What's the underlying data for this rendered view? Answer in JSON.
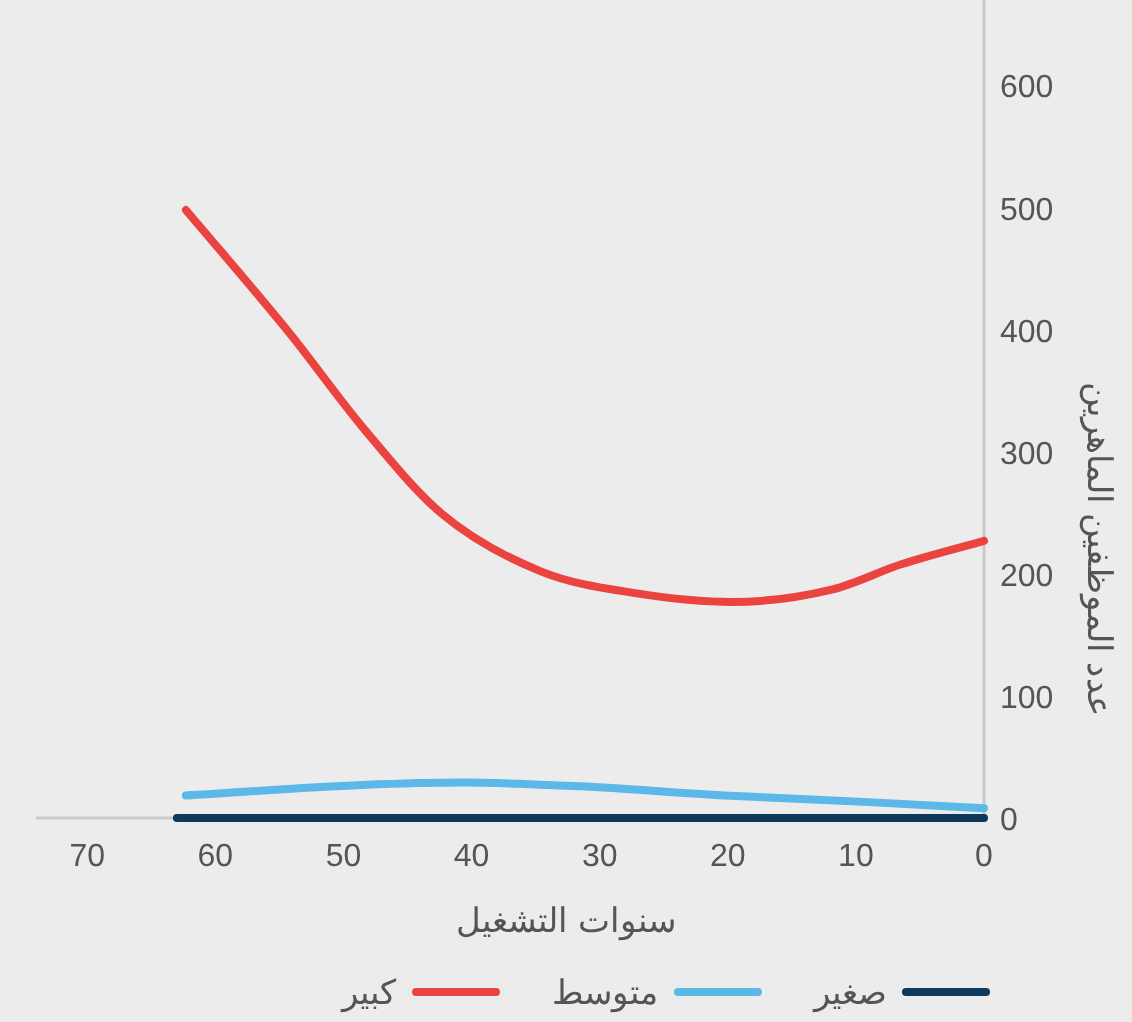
{
  "chart_data": {
    "type": "line",
    "xlabel": "سنوات التشغيل",
    "ylabel": "عدد الموظفين الماهرين",
    "xlim": [
      74,
      0
    ],
    "xticks": [
      70,
      60,
      50,
      40,
      30,
      20,
      10,
      0
    ],
    "ylim": [
      0,
      670
    ],
    "yticks": [
      0,
      100,
      200,
      300,
      400,
      500,
      600
    ],
    "grid": false,
    "legend": "bottom",
    "marker": "none",
    "line_style": "solid",
    "series": [
      {
        "name": "صغير",
        "color": "#0d3a5c",
        "x": [
          63,
          50,
          40,
          30,
          20,
          10,
          0
        ],
        "values": [
          0,
          0,
          0,
          0,
          0,
          0,
          0
        ]
      },
      {
        "name": "متوسط",
        "color": "#5bb8e8",
        "x": [
          62.3,
          48.5,
          40.6,
          31.6,
          20.3,
          9,
          0
        ],
        "values": [
          18.5,
          27,
          29,
          26,
          18.5,
          13,
          8
        ]
      },
      {
        "name": "كبير",
        "color": "#eb4340",
        "x": [
          62.3,
          54.2,
          48.5,
          42.3,
          34.6,
          27.1,
          19.6,
          11.9,
          6.4,
          0
        ],
        "values": [
          498,
          397,
          320,
          249,
          202,
          184,
          177,
          187,
          208,
          227
        ]
      }
    ]
  }
}
